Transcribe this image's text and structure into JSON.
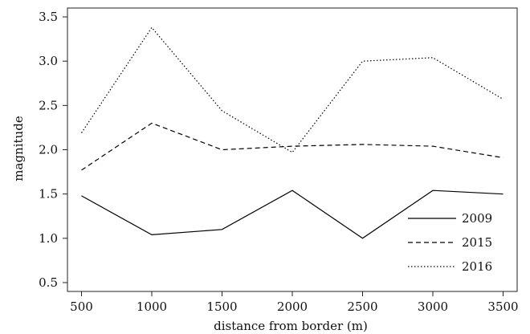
{
  "chart_data": {
    "type": "line",
    "title": "",
    "xlabel": "distance from border (m)",
    "ylabel": "magnitude",
    "x": [
      500,
      1000,
      1500,
      2000,
      2500,
      3000,
      3500
    ],
    "xlim": [
      400,
      3600
    ],
    "ylim": [
      0.4,
      3.6
    ],
    "x_ticks": [
      500,
      1000,
      1500,
      2000,
      2500,
      3000,
      3500
    ],
    "y_ticks": [
      0.5,
      1.0,
      1.5,
      2.0,
      2.5,
      3.0,
      3.5
    ],
    "y_tick_labels": [
      "0.5",
      "1.0",
      "1.5",
      "2.0",
      "2.5",
      "3.0",
      "3.5"
    ],
    "grid": false,
    "legend_position": "bottom-right",
    "series": [
      {
        "name": "2009",
        "style": "solid",
        "color": "#000000",
        "values": [
          1.48,
          1.04,
          1.1,
          1.54,
          1.0,
          1.54,
          1.5
        ]
      },
      {
        "name": "2015",
        "style": "dashed",
        "color": "#000000",
        "values": [
          1.77,
          2.3,
          2.0,
          2.04,
          2.06,
          2.04,
          1.91
        ]
      },
      {
        "name": "2016",
        "style": "dotted",
        "color": "#000000",
        "values": [
          2.19,
          3.38,
          2.44,
          1.97,
          3.0,
          3.04,
          2.57
        ]
      }
    ]
  }
}
